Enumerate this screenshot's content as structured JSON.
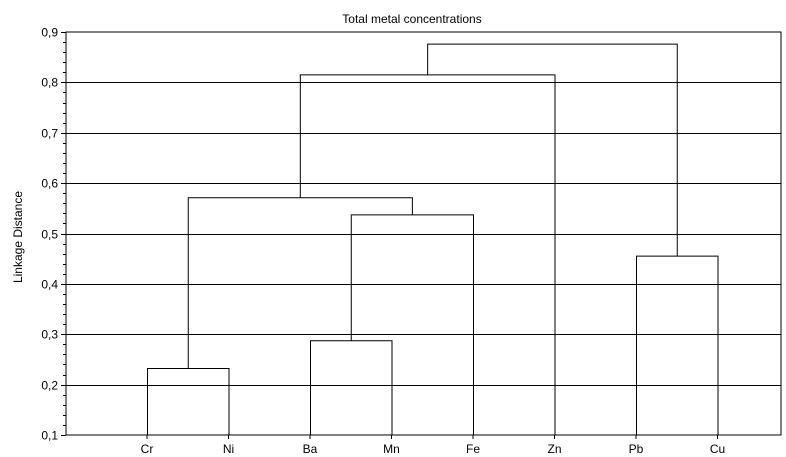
{
  "chart_data": {
    "type": "dendrogram",
    "title": "Total metal concentrations",
    "xlabel": "",
    "ylabel": "Linkage Distance",
    "ylim": [
      0.1,
      0.9
    ],
    "yticks": [
      0.1,
      0.2,
      0.3,
      0.4,
      0.5,
      0.6,
      0.7,
      0.8,
      0.9
    ],
    "ytick_labels": [
      "0,1",
      "0,2",
      "0,3",
      "0,4",
      "0,5",
      "0,6",
      "0,7",
      "0,8",
      "0,9"
    ],
    "grid": "horizontal",
    "leaves": [
      "Cr",
      "Ni",
      "Ba",
      "Mn",
      "Fe",
      "Zn",
      "Pb",
      "Cu"
    ],
    "merges": [
      {
        "left": "Cr",
        "right": "Ni",
        "height": 0.232
      },
      {
        "left": "Ba",
        "right": "Mn",
        "height": 0.287
      },
      {
        "left": "Pb",
        "right": "Cu",
        "height": 0.455
      },
      {
        "left": "Ba+Mn",
        "right": "Fe",
        "height": 0.537
      },
      {
        "left": "Cr+Ni",
        "right": "Ba+Mn+Fe",
        "height": 0.571
      },
      {
        "left": "Cr+Ni+Ba+Mn+Fe",
        "right": "Zn",
        "height": 0.815
      },
      {
        "left": "Cr+Ni+Ba+Mn+Fe+Zn",
        "right": "Pb+Cu",
        "height": 0.876
      }
    ]
  }
}
